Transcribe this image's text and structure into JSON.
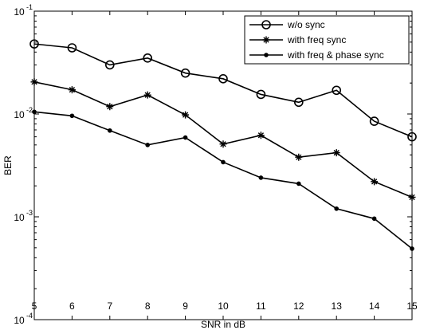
{
  "chart_data": {
    "type": "line",
    "xlabel": "SNR in dB",
    "ylabel": "BER",
    "xlim": [
      5,
      15
    ],
    "ylim": [
      0.0001,
      0.1
    ],
    "yscale": "log",
    "grid": false,
    "legend_position": "top-right",
    "x": [
      5,
      6,
      7,
      8,
      9,
      10,
      11,
      12,
      13,
      14,
      15
    ],
    "x_ticks": [
      "5",
      "6",
      "7",
      "8",
      "9",
      "10",
      "11",
      "12",
      "13",
      "14",
      "15"
    ],
    "y_ticks": [
      {
        "value": 0.1,
        "base": "10",
        "exp": "-1"
      },
      {
        "value": 0.01,
        "base": "10",
        "exp": "-2"
      },
      {
        "value": 0.001,
        "base": "10",
        "exp": "-3"
      },
      {
        "value": 0.0001,
        "base": "10",
        "exp": "-4"
      }
    ],
    "series": [
      {
        "name": "w/o sync",
        "marker": "circle",
        "color": "#000000",
        "values": [
          0.048,
          0.044,
          0.03,
          0.035,
          0.025,
          0.022,
          0.0155,
          0.013,
          0.017,
          0.0085,
          0.006
        ]
      },
      {
        "name": "with freq sync",
        "marker": "star",
        "color": "#000000",
        "values": [
          0.0205,
          0.0172,
          0.0118,
          0.0153,
          0.0098,
          0.0051,
          0.0062,
          0.0038,
          0.0042,
          0.0022,
          0.00155
        ]
      },
      {
        "name": "with freq & phase sync",
        "marker": "dot",
        "color": "#000000",
        "values": [
          0.0105,
          0.0096,
          0.0069,
          0.005,
          0.0059,
          0.0034,
          0.0024,
          0.0021,
          0.0012,
          0.00096,
          0.00049
        ]
      }
    ]
  }
}
